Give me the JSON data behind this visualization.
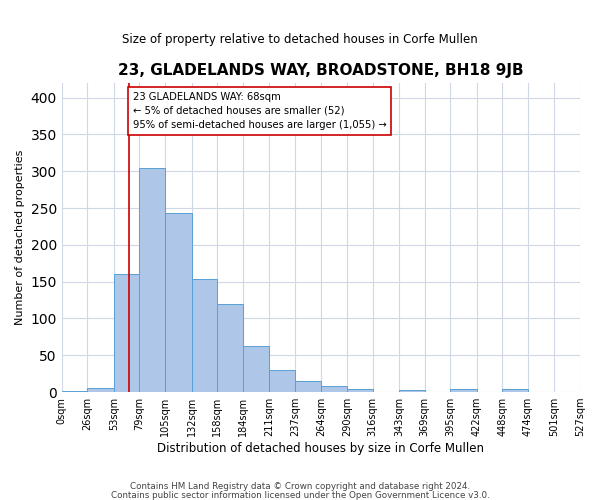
{
  "title": "23, GLADELANDS WAY, BROADSTONE, BH18 9JB",
  "subtitle": "Size of property relative to detached houses in Corfe Mullen",
  "xlabel": "Distribution of detached houses by size in Corfe Mullen",
  "ylabel": "Number of detached properties",
  "footnote1": "Contains HM Land Registry data © Crown copyright and database right 2024.",
  "footnote2": "Contains public sector information licensed under the Open Government Licence v3.0.",
  "bin_edges": [
    0,
    26,
    53,
    79,
    105,
    132,
    158,
    184,
    211,
    237,
    264,
    290,
    316,
    343,
    369,
    395,
    422,
    448,
    474,
    501,
    527
  ],
  "bin_labels": [
    "0sqm",
    "26sqm",
    "53sqm",
    "79sqm",
    "105sqm",
    "132sqm",
    "158sqm",
    "184sqm",
    "211sqm",
    "237sqm",
    "264sqm",
    "290sqm",
    "316sqm",
    "343sqm",
    "369sqm",
    "395sqm",
    "422sqm",
    "448sqm",
    "474sqm",
    "501sqm",
    "527sqm"
  ],
  "bar_values": [
    2,
    5,
    160,
    305,
    243,
    153,
    120,
    62,
    30,
    15,
    8,
    4,
    0,
    3,
    0,
    4,
    0,
    4,
    0,
    0
  ],
  "bar_color": "#aec6e8",
  "bar_edge_color": "#5a9fd4",
  "grid_color": "#d0d8e8",
  "property_size": 68,
  "property_line_color": "#cc0000",
  "annotation_text": "23 GLADELANDS WAY: 68sqm\n← 5% of detached houses are smaller (52)\n95% of semi-detached houses are larger (1,055) →",
  "annotation_box_color": "#ffffff",
  "annotation_box_edge": "#cc0000",
  "ylim": [
    0,
    420
  ],
  "yticks": [
    0,
    50,
    100,
    150,
    200,
    250,
    300,
    350,
    400
  ]
}
